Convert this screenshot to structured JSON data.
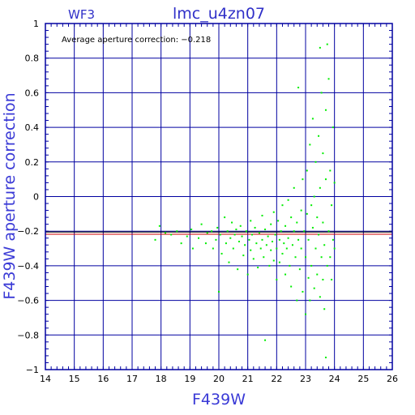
{
  "chart_data": {
    "type": "scatter",
    "title": "lmc_u4zn07",
    "chip_label": "WF3",
    "annotation": "Average aperture correction: −0.218",
    "xlabel": "F439W",
    "ylabel": "F439W  aperture  correction",
    "xlim": [
      14,
      26
    ],
    "ylim": [
      -1,
      1
    ],
    "x_ticks": [
      "14",
      "15",
      "16",
      "17",
      "18",
      "19",
      "20",
      "21",
      "22",
      "23",
      "24",
      "25",
      "26"
    ],
    "y_ticks": [
      "1",
      "0.8",
      "0.6",
      "0.4",
      "0.2",
      "0",
      "−0.2",
      "−0.4",
      "−0.6",
      "−0.8",
      "−1"
    ],
    "grid": true,
    "reference_lines": [
      {
        "name": "average",
        "y": -0.218,
        "color": "#cc0000"
      },
      {
        "name": "offset",
        "y": -0.205,
        "color": "#000000"
      }
    ],
    "colors": {
      "points": "#00ee00",
      "grid": "#0000a0",
      "frame": "#0000a0",
      "title_text": "#3030c8",
      "axis_title_text": "#3a3ad6"
    },
    "points": [
      [
        17.8,
        -0.25
      ],
      [
        17.95,
        -0.17
      ],
      [
        18.15,
        -0.21
      ],
      [
        18.35,
        -0.22
      ],
      [
        18.55,
        -0.2
      ],
      [
        18.7,
        -0.27
      ],
      [
        18.9,
        -0.23
      ],
      [
        19.05,
        -0.19
      ],
      [
        19.1,
        -0.3
      ],
      [
        19.3,
        -0.24
      ],
      [
        19.4,
        -0.16
      ],
      [
        19.55,
        -0.27
      ],
      [
        19.6,
        -0.21
      ],
      [
        19.75,
        -0.2
      ],
      [
        19.8,
        -0.3
      ],
      [
        19.9,
        -0.25
      ],
      [
        19.95,
        -0.18
      ],
      [
        20.0,
        -0.55
      ],
      [
        20.05,
        -0.22
      ],
      [
        20.1,
        -0.33
      ],
      [
        20.2,
        -0.12
      ],
      [
        20.25,
        -0.27
      ],
      [
        20.3,
        -0.2
      ],
      [
        20.35,
        -0.38
      ],
      [
        20.4,
        -0.24
      ],
      [
        20.45,
        -0.15
      ],
      [
        20.5,
        -0.3
      ],
      [
        20.55,
        -0.22
      ],
      [
        20.6,
        -0.19
      ],
      [
        20.65,
        -0.42
      ],
      [
        20.7,
        -0.26
      ],
      [
        20.75,
        -0.17
      ],
      [
        20.8,
        -0.23
      ],
      [
        20.85,
        -0.34
      ],
      [
        20.9,
        -0.28
      ],
      [
        20.95,
        -0.2
      ],
      [
        21.0,
        -0.45
      ],
      [
        21.05,
        -0.25
      ],
      [
        21.1,
        -0.14
      ],
      [
        21.1,
        -0.31
      ],
      [
        21.15,
        -0.22
      ],
      [
        21.2,
        -0.36
      ],
      [
        21.25,
        -0.18
      ],
      [
        21.3,
        -0.27
      ],
      [
        21.35,
        -0.41
      ],
      [
        21.4,
        -0.21
      ],
      [
        21.45,
        -0.3
      ],
      [
        21.5,
        -0.11
      ],
      [
        21.5,
        -0.25
      ],
      [
        21.55,
        -0.35
      ],
      [
        21.6,
        -0.19
      ],
      [
        21.6,
        -0.83
      ],
      [
        21.65,
        -0.28
      ],
      [
        21.7,
        -0.23
      ],
      [
        21.75,
        -0.4
      ],
      [
        21.8,
        -0.16
      ],
      [
        21.8,
        -0.31
      ],
      [
        21.85,
        -0.26
      ],
      [
        21.9,
        -0.09
      ],
      [
        21.9,
        -0.37
      ],
      [
        21.95,
        -0.22
      ],
      [
        22.0,
        -0.3
      ],
      [
        22.0,
        -0.48
      ],
      [
        22.05,
        -0.14
      ],
      [
        22.1,
        -0.25
      ],
      [
        22.1,
        -0.38
      ],
      [
        22.15,
        -0.2
      ],
      [
        22.2,
        -0.05
      ],
      [
        22.2,
        -0.33
      ],
      [
        22.25,
        -0.27
      ],
      [
        22.3,
        -0.45
      ],
      [
        22.3,
        -0.17
      ],
      [
        22.35,
        -0.3
      ],
      [
        22.4,
        -0.02
      ],
      [
        22.4,
        -0.24
      ],
      [
        22.45,
        -0.4
      ],
      [
        22.5,
        -0.12
      ],
      [
        22.5,
        -0.52
      ],
      [
        22.55,
        -0.28
      ],
      [
        22.6,
        -0.2
      ],
      [
        22.6,
        0.05
      ],
      [
        22.65,
        -0.35
      ],
      [
        22.7,
        -0.6
      ],
      [
        22.7,
        -0.15
      ],
      [
        22.75,
        -0.25
      ],
      [
        22.75,
        0.63
      ],
      [
        22.8,
        -0.42
      ],
      [
        22.85,
        -0.08
      ],
      [
        22.85,
        -0.3
      ],
      [
        22.9,
        -0.55
      ],
      [
        22.9,
        0.1
      ],
      [
        22.95,
        -0.2
      ],
      [
        23.0,
        -0.68
      ],
      [
        23.0,
        -0.35
      ],
      [
        23.05,
        -0.1
      ],
      [
        23.05,
        0.15
      ],
      [
        23.1,
        -0.47
      ],
      [
        23.1,
        -0.25
      ],
      [
        23.15,
        -0.6
      ],
      [
        23.15,
        0.3
      ],
      [
        23.2,
        -0.05
      ],
      [
        23.2,
        -0.4
      ],
      [
        23.25,
        -0.18
      ],
      [
        23.25,
        0.45
      ],
      [
        23.3,
        -0.53
      ],
      [
        23.3,
        0.0
      ],
      [
        23.35,
        -0.3
      ],
      [
        23.35,
        0.2
      ],
      [
        23.4,
        -0.12
      ],
      [
        23.4,
        -0.45
      ],
      [
        23.45,
        0.35
      ],
      [
        23.45,
        -0.22
      ],
      [
        23.5,
        -0.58
      ],
      [
        23.5,
        0.05
      ],
      [
        23.5,
        0.86
      ],
      [
        23.55,
        -0.35
      ],
      [
        23.55,
        0.6
      ],
      [
        23.6,
        -0.15
      ],
      [
        23.6,
        -0.48
      ],
      [
        23.6,
        0.25
      ],
      [
        23.65,
        -0.28
      ],
      [
        23.65,
        -0.65
      ],
      [
        23.7,
        0.1
      ],
      [
        23.7,
        -0.93
      ],
      [
        23.7,
        0.5
      ],
      [
        23.75,
        -0.4
      ],
      [
        23.75,
        0.88
      ],
      [
        23.8,
        -0.2
      ],
      [
        23.8,
        0.68
      ],
      [
        23.85,
        -0.35
      ],
      [
        23.85,
        0.15
      ],
      [
        23.9,
        -0.05
      ],
      [
        23.9,
        -0.48
      ],
      [
        23.95,
        0.4
      ],
      [
        23.95,
        -0.25
      ],
      [
        24.0,
        -0.3
      ],
      [
        24.0,
        0.08
      ]
    ]
  }
}
